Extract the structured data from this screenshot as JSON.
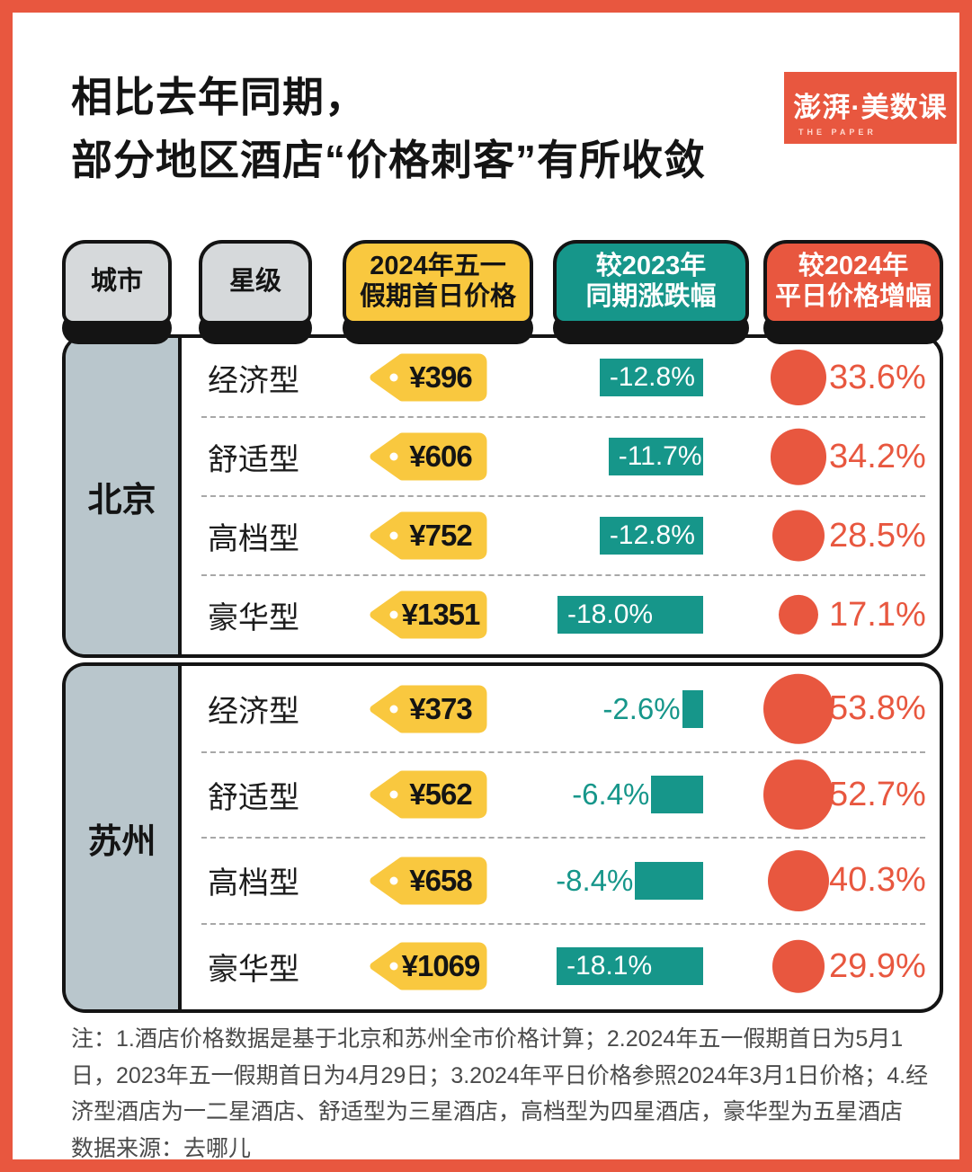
{
  "title": {
    "line1": "相比去年同期，",
    "line2": "部分地区酒店“价格刺客”有所收敛"
  },
  "logo": {
    "main": "澎湃·美数课",
    "sub": "THE PAPER"
  },
  "colors": {
    "frame_and_accent_red": "#E8573F",
    "teal": "#16968A",
    "tag_yellow": "#F9C83F",
    "header_gray": "#D6D9DB",
    "city_cell_bluegray": "#B9C6CC",
    "ink": "#141414",
    "note_gray": "#4A4A4A"
  },
  "table": {
    "headers": [
      {
        "lines": [
          "城市",
          ""
        ]
      },
      {
        "lines": [
          "星级",
          ""
        ]
      },
      {
        "lines": [
          "2024年五一",
          "假期首日价格"
        ]
      },
      {
        "lines": [
          "较2023年",
          "同期涨跌幅"
        ]
      },
      {
        "lines": [
          "较2024年",
          "平日价格增幅"
        ]
      }
    ],
    "groups": [
      {
        "city": "北京",
        "rows": [
          {
            "star": "经济型",
            "price": "¥396",
            "yoy": -12.8,
            "yoy_label": "-12.8%",
            "uplift": 33.6,
            "uplift_label": "33.6%"
          },
          {
            "star": "舒适型",
            "price": "¥606",
            "yoy": -11.7,
            "yoy_label": "-11.7%",
            "uplift": 34.2,
            "uplift_label": "34.2%"
          },
          {
            "star": "高档型",
            "price": "¥752",
            "yoy": -12.8,
            "yoy_label": "-12.8%",
            "uplift": 28.5,
            "uplift_label": "28.5%"
          },
          {
            "star": "豪华型",
            "price": "¥1351",
            "yoy": -18.0,
            "yoy_label": "-18.0%",
            "uplift": 17.1,
            "uplift_label": "17.1%"
          }
        ]
      },
      {
        "city": "苏州",
        "rows": [
          {
            "star": "经济型",
            "price": "¥373",
            "yoy": -2.6,
            "yoy_label": "-2.6%",
            "uplift": 53.8,
            "uplift_label": "53.8%"
          },
          {
            "star": "舒适型",
            "price": "¥562",
            "yoy": -6.4,
            "yoy_label": "-6.4%",
            "uplift": 52.7,
            "uplift_label": "52.7%"
          },
          {
            "star": "高档型",
            "price": "¥658",
            "yoy": -8.4,
            "yoy_label": "-8.4%",
            "uplift": 40.3,
            "uplift_label": "40.3%"
          },
          {
            "star": "豪华型",
            "price": "¥1069",
            "yoy": -18.1,
            "yoy_label": "-18.1%",
            "uplift": 29.9,
            "uplift_label": "29.9%"
          }
        ]
      }
    ]
  },
  "notes": {
    "body": "注：1.酒店价格数据是基于北京和苏州全市价格计算；2.2024年五一假期首日为5月1日，2023年五一假期首日为4月29日；3.2024年平日价格参照2024年3月1日价格；4.经济型酒店为一二星酒店、舒适型为三星酒店，高档型为四星酒店，豪华型为五星酒店",
    "source": "数据来源：去哪儿"
  },
  "chart_data": {
    "type": "table",
    "title": "相比去年同期，部分地区酒店“价格刺客”有所收敛",
    "columns": [
      "城市",
      "星级",
      "2024年五一假期首日价格",
      "较2023年同期涨跌幅",
      "较2024年平日价格增幅"
    ],
    "rows": [
      [
        "北京",
        "经济型",
        396,
        -12.8,
        33.6
      ],
      [
        "北京",
        "舒适型",
        606,
        -11.7,
        34.2
      ],
      [
        "北京",
        "高档型",
        752,
        -12.8,
        28.5
      ],
      [
        "北京",
        "豪华型",
        1351,
        -18.0,
        17.1
      ],
      [
        "苏州",
        "经济型",
        373,
        -2.6,
        53.8
      ],
      [
        "苏州",
        "舒适型",
        562,
        -6.4,
        52.7
      ],
      [
        "苏州",
        "高档型",
        658,
        -8.4,
        40.3
      ],
      [
        "苏州",
        "豪华型",
        1069,
        -18.1,
        29.9
      ]
    ],
    "encodings": {
      "较2023年同期涨跌幅": "horizontal teal bar, right-aligned, length proportional to |percent| (~9px per point), white label inside when large, teal label outside when small",
      "较2024年平日价格增幅": "red circle, area proportional to percent, red label at right"
    },
    "source": "去哪儿",
    "legend_position": "none",
    "grid": "dashed row separators"
  }
}
